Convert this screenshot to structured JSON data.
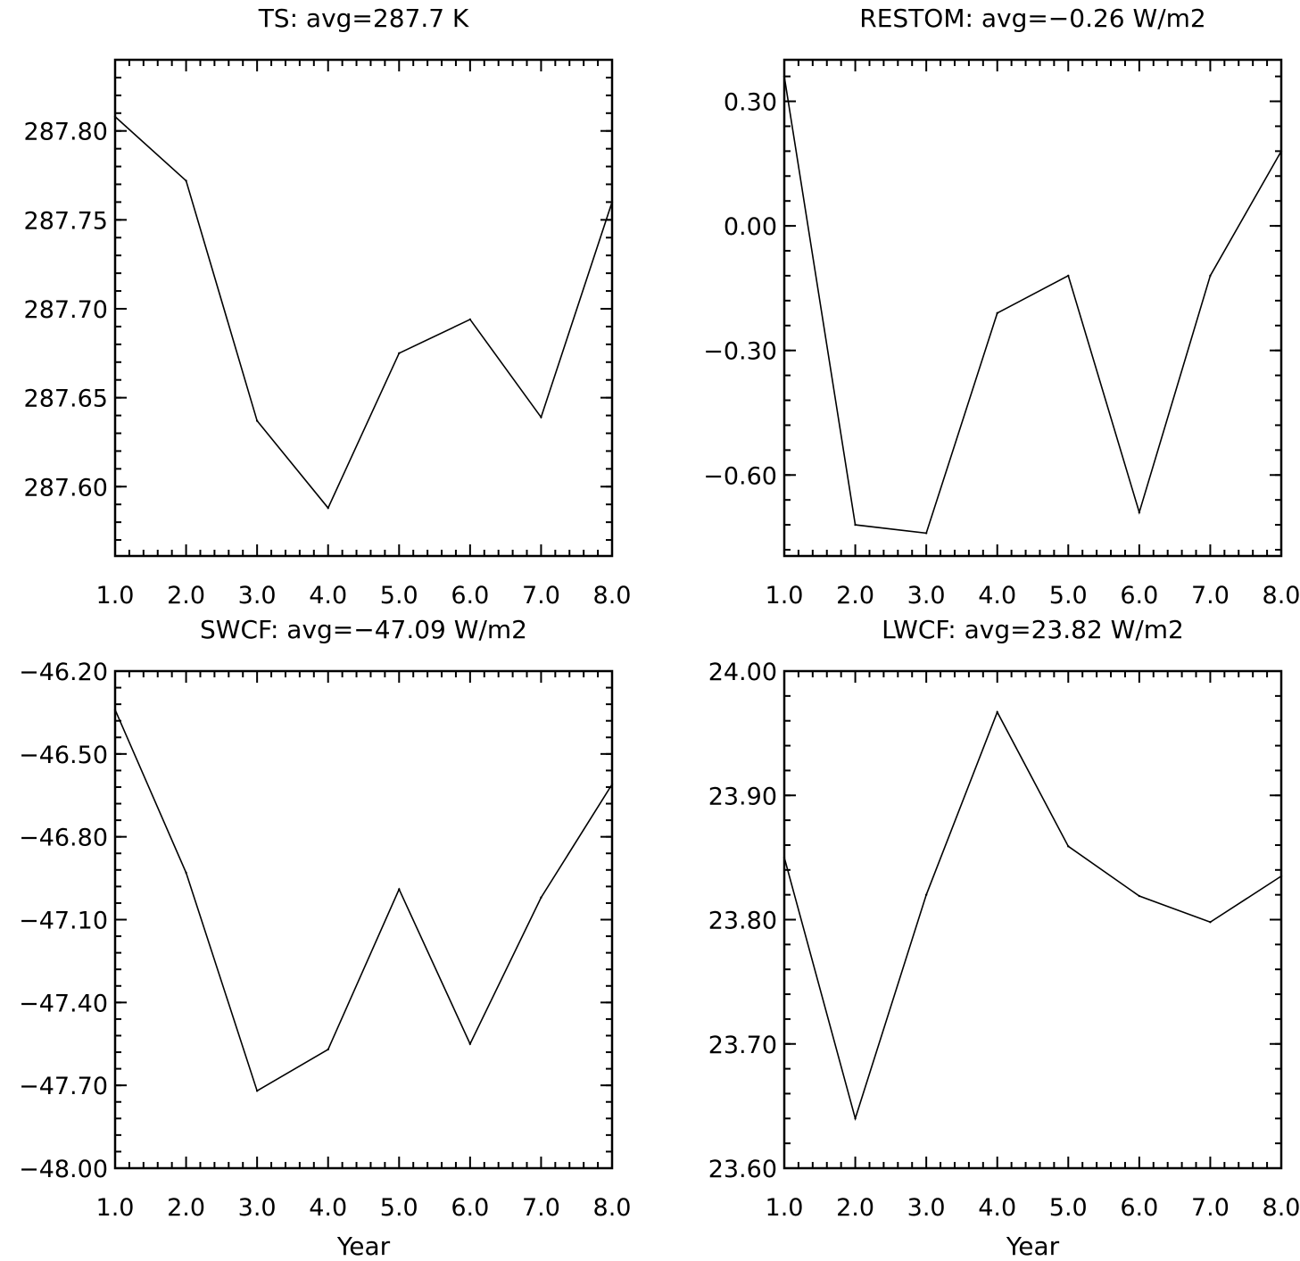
{
  "chart_data": [
    {
      "type": "line",
      "title": "TS: avg=287.7 K",
      "xlabel": "",
      "ylabel": "",
      "x": [
        1,
        2,
        3,
        4,
        5,
        6,
        7,
        8
      ],
      "values": [
        287.808,
        287.772,
        287.637,
        287.588,
        287.675,
        287.694,
        287.639,
        287.76
      ],
      "xticks": [
        "1.0",
        "2.0",
        "3.0",
        "4.0",
        "5.0",
        "6.0",
        "7.0",
        "8.0"
      ],
      "yticks": [
        "287.60",
        "287.65",
        "287.70",
        "287.75",
        "287.80"
      ],
      "xlim": [
        1,
        8
      ],
      "ylim": [
        287.561,
        287.84
      ],
      "ytick_values": [
        287.6,
        287.65,
        287.7,
        287.75,
        287.8
      ],
      "ytick_minor_step": 0.01
    },
    {
      "type": "line",
      "title": "RESTOM: avg=−0.26 W/m2",
      "xlabel": "",
      "ylabel": "",
      "x": [
        1,
        2,
        3,
        4,
        5,
        6,
        7,
        8
      ],
      "values": [
        0.36,
        -0.72,
        -0.74,
        -0.21,
        -0.12,
        -0.69,
        -0.12,
        0.18
      ],
      "xticks": [
        "1.0",
        "2.0",
        "3.0",
        "4.0",
        "5.0",
        "6.0",
        "7.0",
        "8.0"
      ],
      "yticks": [
        "−0.60",
        "−0.30",
        "0.00",
        "0.30"
      ],
      "xlim": [
        1,
        8
      ],
      "ylim": [
        -0.795,
        0.4
      ],
      "ytick_values": [
        -0.6,
        -0.3,
        0.0,
        0.3
      ],
      "ytick_minor_step": 0.06
    },
    {
      "type": "line",
      "title": "SWCF: avg=−47.09 W/m2",
      "xlabel": "Year",
      "ylabel": "",
      "x": [
        1,
        2,
        3,
        4,
        5,
        6,
        7,
        8
      ],
      "values": [
        -46.34,
        -46.93,
        -47.72,
        -47.57,
        -46.99,
        -47.55,
        -47.02,
        -46.61
      ],
      "xticks": [
        "1.0",
        "2.0",
        "3.0",
        "4.0",
        "5.0",
        "6.0",
        "7.0",
        "8.0"
      ],
      "yticks": [
        "−48.00",
        "−47.70",
        "−47.40",
        "−47.10",
        "−46.80",
        "−46.50",
        "−46.20"
      ],
      "xlim": [
        1,
        8
      ],
      "ylim": [
        -48.0,
        -46.2
      ],
      "ytick_values": [
        -48.0,
        -47.7,
        -47.4,
        -47.1,
        -46.8,
        -46.5,
        -46.2
      ],
      "ytick_minor_step": 0.06
    },
    {
      "type": "line",
      "title": "LWCF: avg=23.82 W/m2",
      "xlabel": "Year",
      "ylabel": "",
      "x": [
        1,
        2,
        3,
        4,
        5,
        6,
        7,
        8
      ],
      "values": [
        23.85,
        23.64,
        23.82,
        23.967,
        23.859,
        23.819,
        23.798,
        23.835
      ],
      "xticks": [
        "1.0",
        "2.0",
        "3.0",
        "4.0",
        "5.0",
        "6.0",
        "7.0",
        "8.0"
      ],
      "yticks": [
        "23.60",
        "23.70",
        "23.80",
        "23.90",
        "24.00"
      ],
      "xlim": [
        1,
        8
      ],
      "ylim": [
        23.6,
        24.0
      ],
      "ytick_values": [
        23.6,
        23.7,
        23.8,
        23.9,
        24.0
      ],
      "ytick_minor_step": 0.02
    }
  ]
}
